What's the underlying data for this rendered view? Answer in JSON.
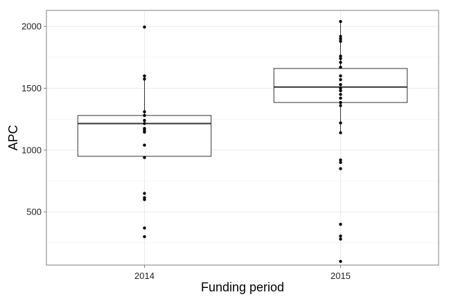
{
  "chart_data": {
    "type": "box",
    "title": "",
    "xlabel": "Funding period",
    "ylabel": "APC",
    "categories": [
      "2014",
      "2015"
    ],
    "ylim": [
      70,
      2130
    ],
    "yticks": [
      500,
      1000,
      1500,
      2000
    ],
    "grid": true,
    "legend": "none",
    "boxes": [
      {
        "category": "2014",
        "q1": 950,
        "median": 1215,
        "q3": 1280,
        "whisker_low": 940,
        "whisker_high": 1600
      },
      {
        "category": "2015",
        "q1": 1385,
        "median": 1510,
        "q3": 1660,
        "whisker_low": 1140,
        "whisker_high": 2040
      }
    ],
    "points": [
      {
        "category": "2014",
        "values": [
          1995,
          1600,
          1575,
          1310,
          1280,
          1240,
          1215,
          1175,
          1160,
          1145,
          1040,
          940,
          650,
          615,
          600,
          370,
          300
        ]
      },
      {
        "category": "2015",
        "values": [
          2040,
          1920,
          1900,
          1880,
          1760,
          1740,
          1710,
          1670,
          1600,
          1570,
          1530,
          1500,
          1480,
          1450,
          1420,
          1385,
          1360,
          1220,
          1140,
          920,
          900,
          850,
          400,
          305,
          280,
          100
        ]
      }
    ],
    "colors": {
      "panel_border": "#7f7f7f",
      "grid": "#ebebeb",
      "box_stroke": "#333333",
      "point": "#000000",
      "text": "#222222"
    }
  }
}
